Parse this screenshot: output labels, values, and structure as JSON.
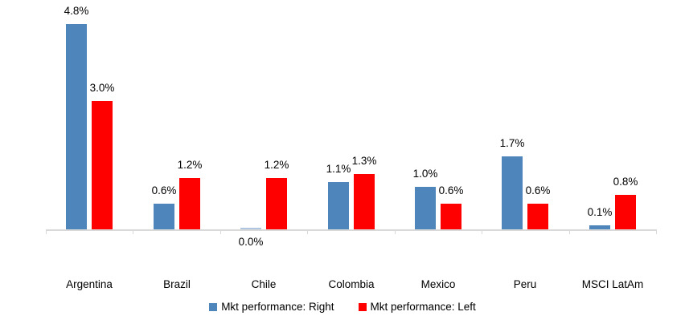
{
  "chart_data": {
    "type": "bar",
    "title": "",
    "xlabel": "",
    "ylabel": "",
    "categories": [
      "Argentina",
      "Brazil",
      "Chile",
      "Colombia",
      "Mexico",
      "Peru",
      "MSCI LatAm"
    ],
    "series": [
      {
        "name": "Mkt performance: Right",
        "color": "#4e86bc",
        "zero_bar_color": "#aec6e0",
        "values": [
          4.8,
          0.6,
          0.0,
          1.1,
          1.0,
          1.7,
          0.1
        ],
        "labels": [
          "4.8%",
          "0.6%",
          "0.0%",
          "1.1%",
          "1.0%",
          "1.7%",
          "0.1%"
        ]
      },
      {
        "name": "Mkt performance: Left",
        "color": "#fe0000",
        "zero_bar_color": "#ffb3b3",
        "values": [
          3.0,
          1.2,
          1.2,
          1.3,
          0.6,
          0.6,
          0.8
        ],
        "labels": [
          "3.0%",
          "1.2%",
          "1.2%",
          "1.3%",
          "0.6%",
          "0.6%",
          "0.8%"
        ]
      }
    ],
    "ylim": [
      0,
      5.4
    ],
    "grid": false,
    "data_labels": true,
    "legend_position": "bottom",
    "axis_color": "#d9d9d9",
    "text_color": "#000000",
    "background_color": "#ffffff"
  }
}
